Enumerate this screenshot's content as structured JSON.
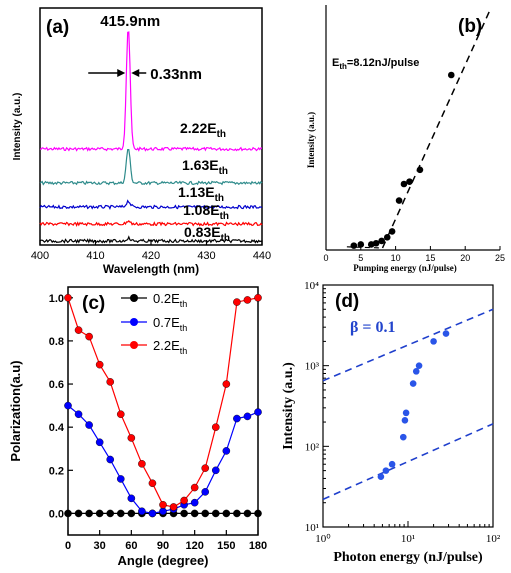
{
  "chart_data": [
    {
      "type": "line",
      "panel_label": "(a)",
      "xlabel": "Wavelength (nm)",
      "ylabel": "Intensity (a.u.)",
      "xlim": [
        400,
        440
      ],
      "xticks": [
        "400",
        "410",
        "420",
        "430",
        "440"
      ],
      "annotations": {
        "peak": "415.9nm",
        "fwhm": "0.33nm"
      },
      "series": [
        {
          "name": "2.22E",
          "sub": "th",
          "color": "#ff00ff",
          "peak_height": 1.0
        },
        {
          "name": "1.63E",
          "sub": "th",
          "color": "#2e8b8b",
          "peak_height": 0.45
        },
        {
          "name": "1.13E",
          "sub": "th",
          "color": "#0000cc",
          "peak_height": 0.12
        },
        {
          "name": "1.08E",
          "sub": "th",
          "color": "#ff0000",
          "peak_height": 0.05
        },
        {
          "name": "0.83E",
          "sub": "th",
          "color": "#000000",
          "peak_height": 0.01
        }
      ],
      "peak_x": 415.9
    },
    {
      "type": "scatter",
      "panel_label": "(b)",
      "xlabel": "Pumping energy (nJ/pulse)",
      "ylabel": "Intensity (a.u.)",
      "xlim": [
        0,
        25
      ],
      "ylim": [
        0,
        100
      ],
      "xticks": [
        "0",
        "5",
        "10",
        "15",
        "20",
        "25"
      ],
      "annotation": {
        "main": "E",
        "sub": "th",
        "rest": "=8.12nJ/pulse"
      },
      "x": [
        4.0,
        5.0,
        6.5,
        7.2,
        8.0,
        8.8,
        9.5,
        10.5,
        11.2,
        12.0,
        13.5,
        18.0
      ],
      "y": [
        1,
        1.5,
        1.5,
        2,
        3,
        4.5,
        7,
        20,
        27,
        28,
        33,
        73
      ],
      "fit_line": [
        [
          8.12,
          0
        ],
        [
          23.5,
          100
        ]
      ]
    },
    {
      "type": "line",
      "panel_label": "(c)",
      "xlabel": "Angle (degree)",
      "ylabel": "Polarization(a.u)",
      "xlim": [
        0,
        180
      ],
      "ylim": [
        -0.1,
        1.05
      ],
      "xticks": [
        "0",
        "30",
        "60",
        "90",
        "120",
        "150",
        "180"
      ],
      "yticks": [
        "0.0",
        "0.2",
        "0.4",
        "0.6",
        "0.8",
        "1.0"
      ],
      "x": [
        0,
        10,
        20,
        30,
        40,
        50,
        60,
        70,
        80,
        90,
        100,
        110,
        120,
        130,
        140,
        150,
        160,
        170,
        180
      ],
      "series": [
        {
          "name": "0.2E",
          "sub": "th",
          "color": "#000000",
          "values": [
            0,
            0,
            0,
            0,
            0,
            0,
            0,
            0,
            0,
            0,
            0,
            0,
            0,
            0,
            0,
            0,
            0,
            0,
            0
          ]
        },
        {
          "name": "0.7E",
          "sub": "th",
          "color": "#0000ff",
          "values": [
            0.5,
            0.46,
            0.41,
            0.33,
            0.25,
            0.16,
            0.07,
            0.01,
            0.0,
            0.01,
            0.02,
            0.04,
            0.05,
            0.1,
            0.2,
            0.29,
            0.44,
            0.45,
            0.47
          ]
        },
        {
          "name": "2.2E",
          "sub": "th",
          "color": "#ff0000",
          "values": [
            1.0,
            0.85,
            0.82,
            0.69,
            0.61,
            0.46,
            0.35,
            0.23,
            0.14,
            0.04,
            0.03,
            0.06,
            0.12,
            0.21,
            0.4,
            0.6,
            0.98,
            0.99,
            1.0
          ]
        }
      ]
    },
    {
      "type": "scatter",
      "panel_label": "(d)",
      "xlabel": "Photon energy (nJ/pulse)",
      "ylabel": "Intensity (a.u.)",
      "xscale": "log",
      "yscale": "log",
      "xlim": [
        1,
        100
      ],
      "ylim": [
        10,
        10000
      ],
      "xticks": [
        "10⁰",
        "10¹",
        "10²"
      ],
      "yticks": [
        "10¹",
        "10²",
        "10³",
        "10⁴"
      ],
      "annotation": "β = 0.1",
      "x": [
        4.8,
        5.5,
        6.5,
        8.8,
        9.2,
        9.5,
        11.5,
        12.5,
        13.5,
        20,
        28
      ],
      "y": [
        42,
        50,
        60,
        130,
        210,
        260,
        600,
        850,
        1000,
        2000,
        2500
      ],
      "fit_lines": [
        [
          [
            1,
            22
          ],
          [
            100,
            190
          ]
        ],
        [
          [
            1,
            650
          ],
          [
            100,
            5000
          ]
        ]
      ]
    }
  ]
}
